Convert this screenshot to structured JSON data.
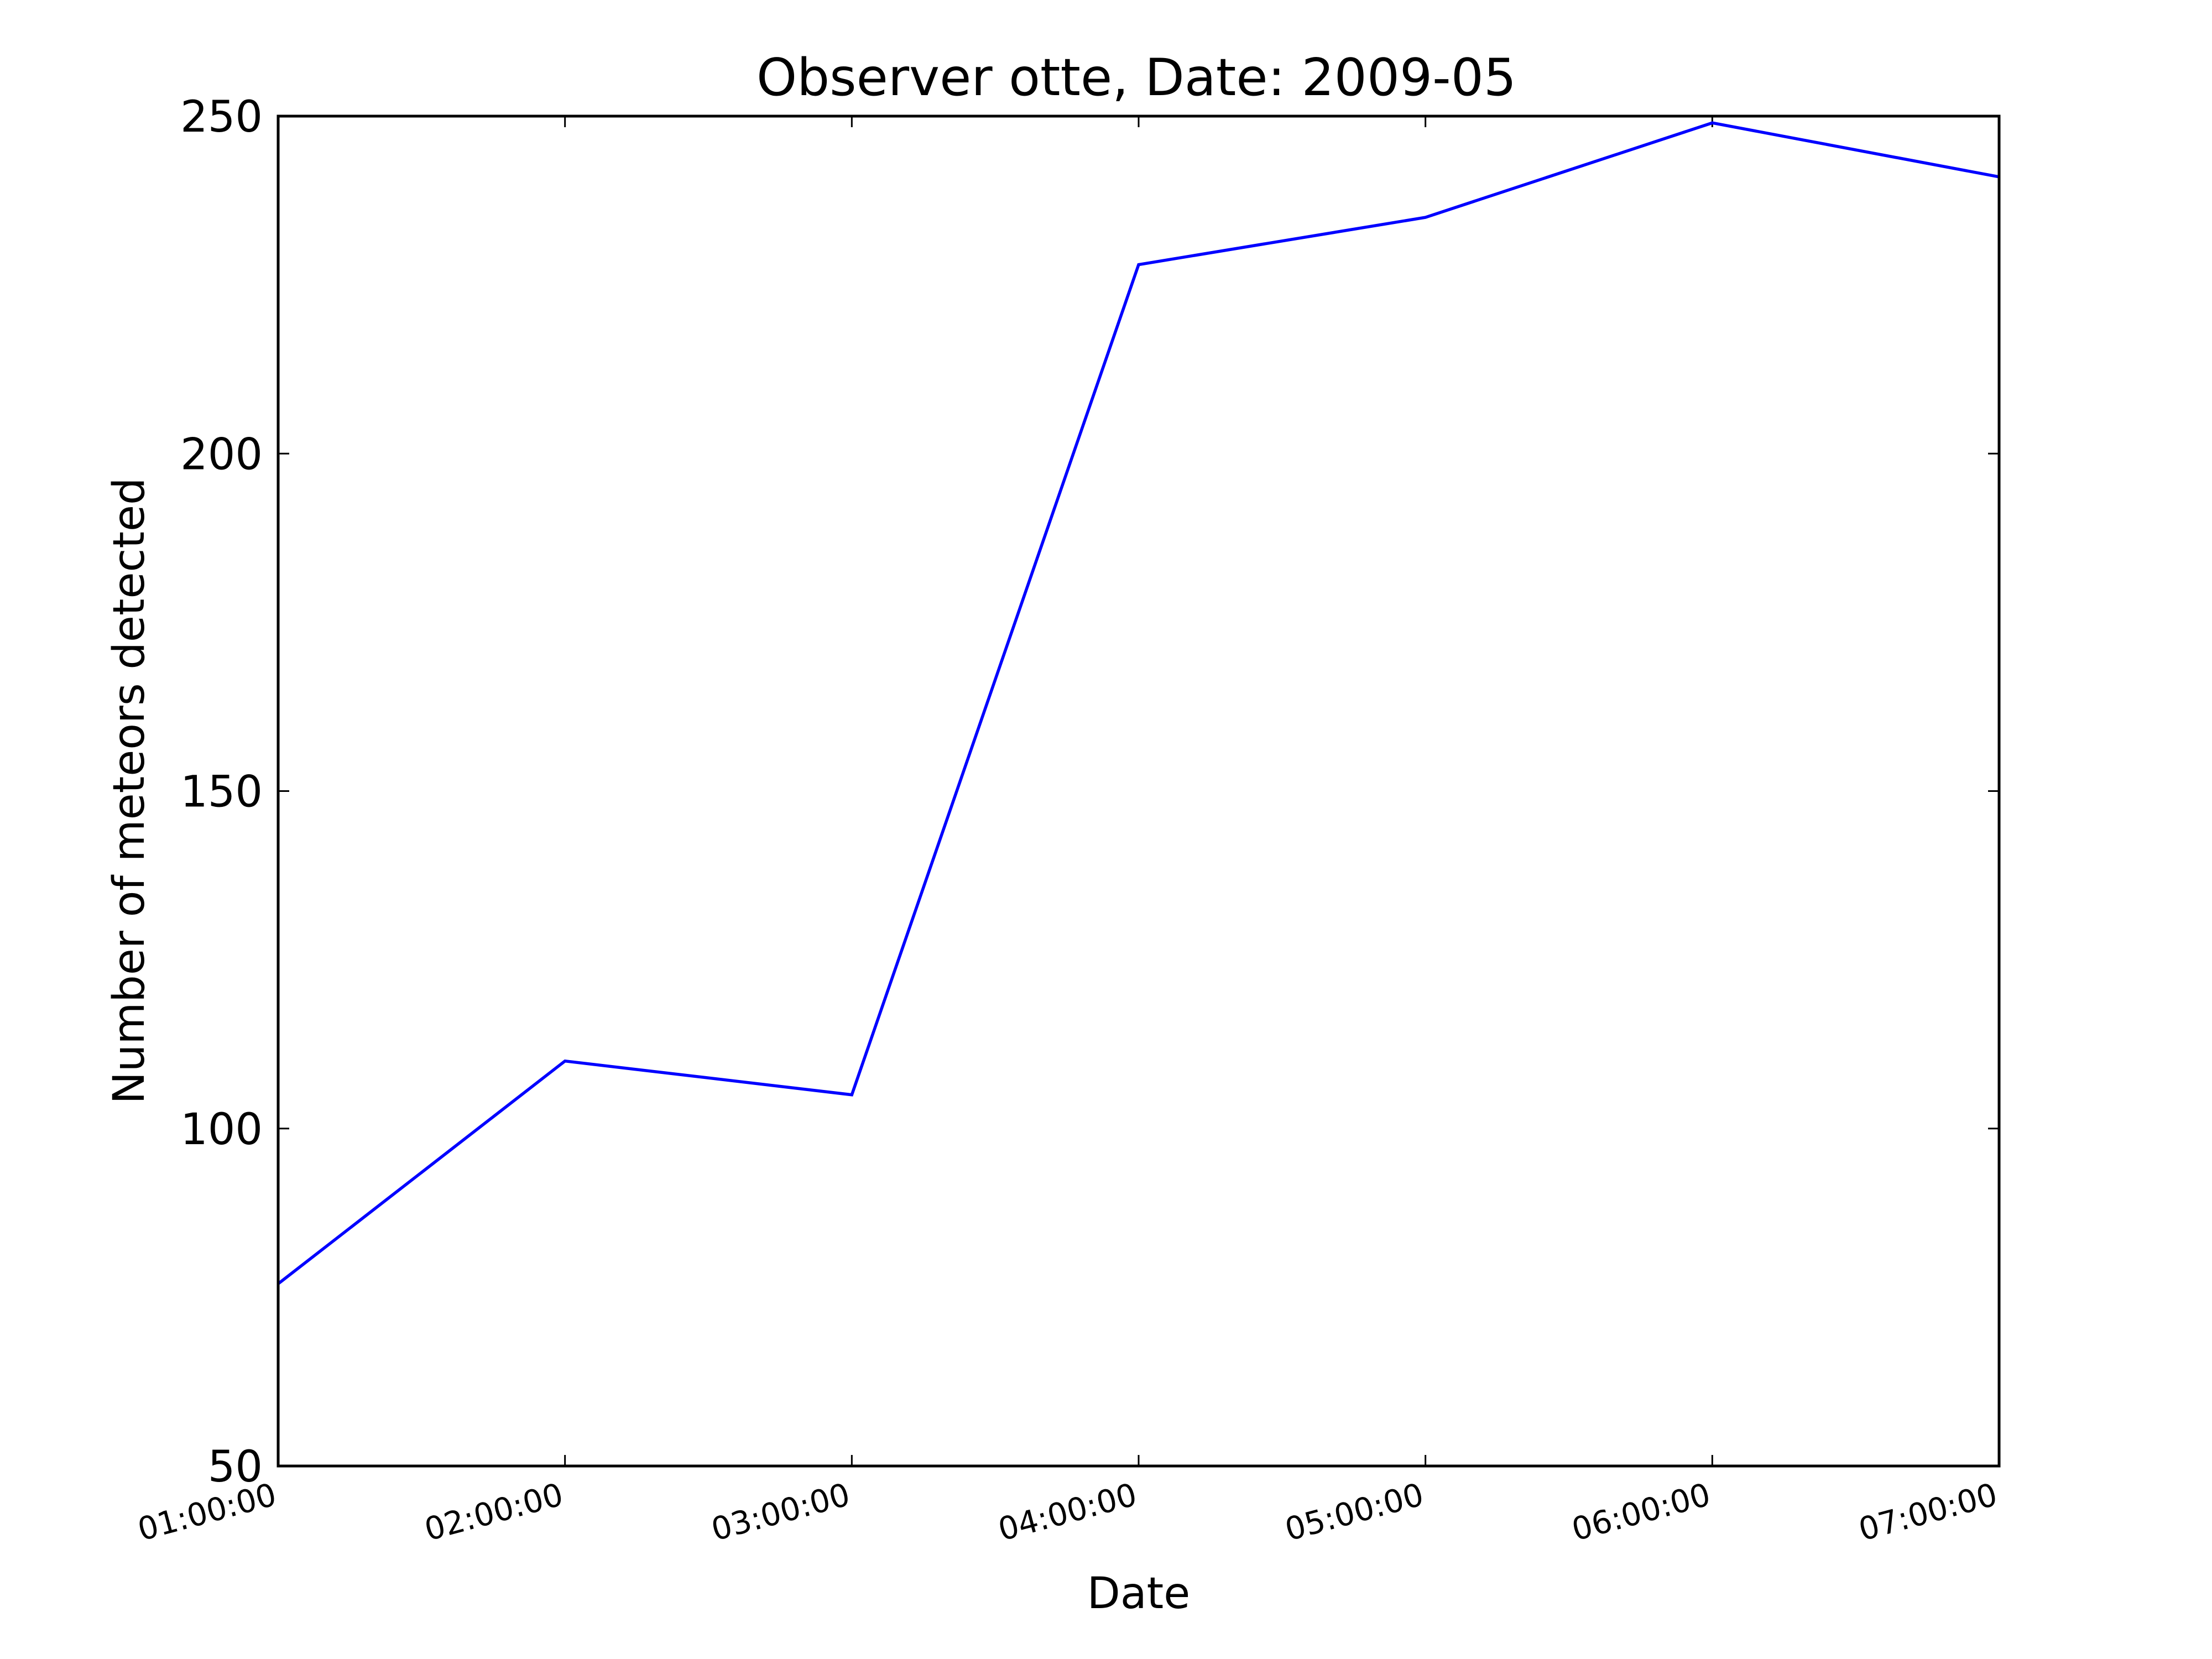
{
  "chart_data": {
    "type": "line",
    "title": "Observer otte, Date: 2009-05",
    "xlabel": "Date",
    "ylabel": "Number of meteors detected",
    "x": [
      "01:00:00",
      "02:00:00",
      "03:00:00",
      "04:00:00",
      "05:00:00",
      "06:00:00",
      "07:00:00"
    ],
    "series": [
      {
        "values": [
          77,
          110,
          105,
          228,
          235,
          249,
          241
        ],
        "color": "#0000ff"
      }
    ],
    "ylim": [
      50,
      250
    ],
    "yticks": [
      50,
      100,
      150,
      200,
      250
    ],
    "grid": false,
    "legend": "none"
  }
}
